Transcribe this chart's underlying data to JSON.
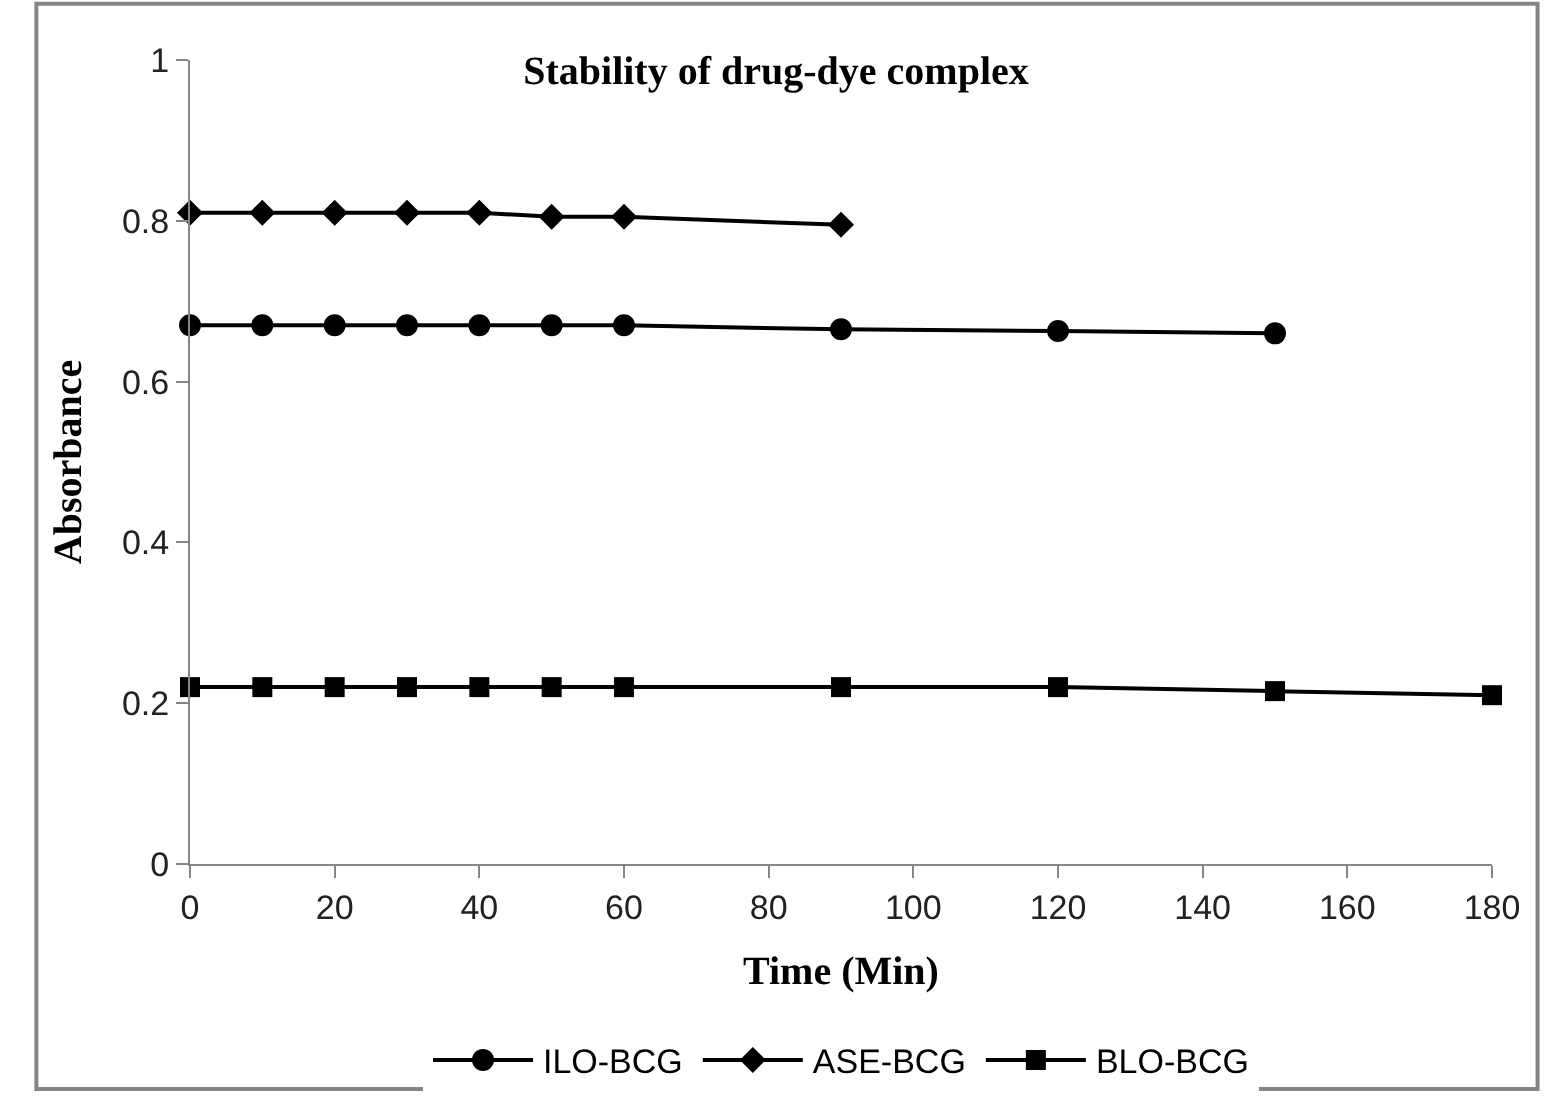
{
  "chart_data": {
    "type": "line",
    "title": "Stability of drug-dye complex",
    "xlabel": "Time (Min)",
    "ylabel": "Absorbance",
    "xlim": [
      0,
      180
    ],
    "xticks": [
      0,
      20,
      40,
      60,
      80,
      100,
      120,
      140,
      160,
      180
    ],
    "ylim": [
      0,
      1
    ],
    "yticks": [
      0,
      0.2,
      0.4,
      0.6,
      0.8,
      1
    ],
    "grid": false,
    "legend": "bottom",
    "line_style": "solid",
    "series": [
      {
        "name": "ILO-BCG",
        "color": "#000000",
        "marker": "circle",
        "x": [
          0,
          10,
          20,
          30,
          40,
          50,
          60,
          90,
          120,
          150
        ],
        "values": [
          0.67,
          0.67,
          0.67,
          0.67,
          0.67,
          0.67,
          0.67,
          0.665,
          0.663,
          0.66
        ]
      },
      {
        "name": "ASE-BCG",
        "color": "#000000",
        "marker": "diamond",
        "x": [
          0,
          10,
          20,
          30,
          40,
          50,
          60,
          90
        ],
        "values": [
          0.81,
          0.81,
          0.81,
          0.81,
          0.81,
          0.805,
          0.805,
          0.795
        ]
      },
      {
        "name": "BLO-BCG",
        "color": "#000000",
        "marker": "square",
        "x": [
          0,
          10,
          20,
          30,
          40,
          50,
          60,
          90,
          120,
          150,
          180
        ],
        "values": [
          0.22,
          0.22,
          0.22,
          0.22,
          0.22,
          0.22,
          0.22,
          0.22,
          0.22,
          0.215,
          0.21
        ]
      }
    ]
  }
}
